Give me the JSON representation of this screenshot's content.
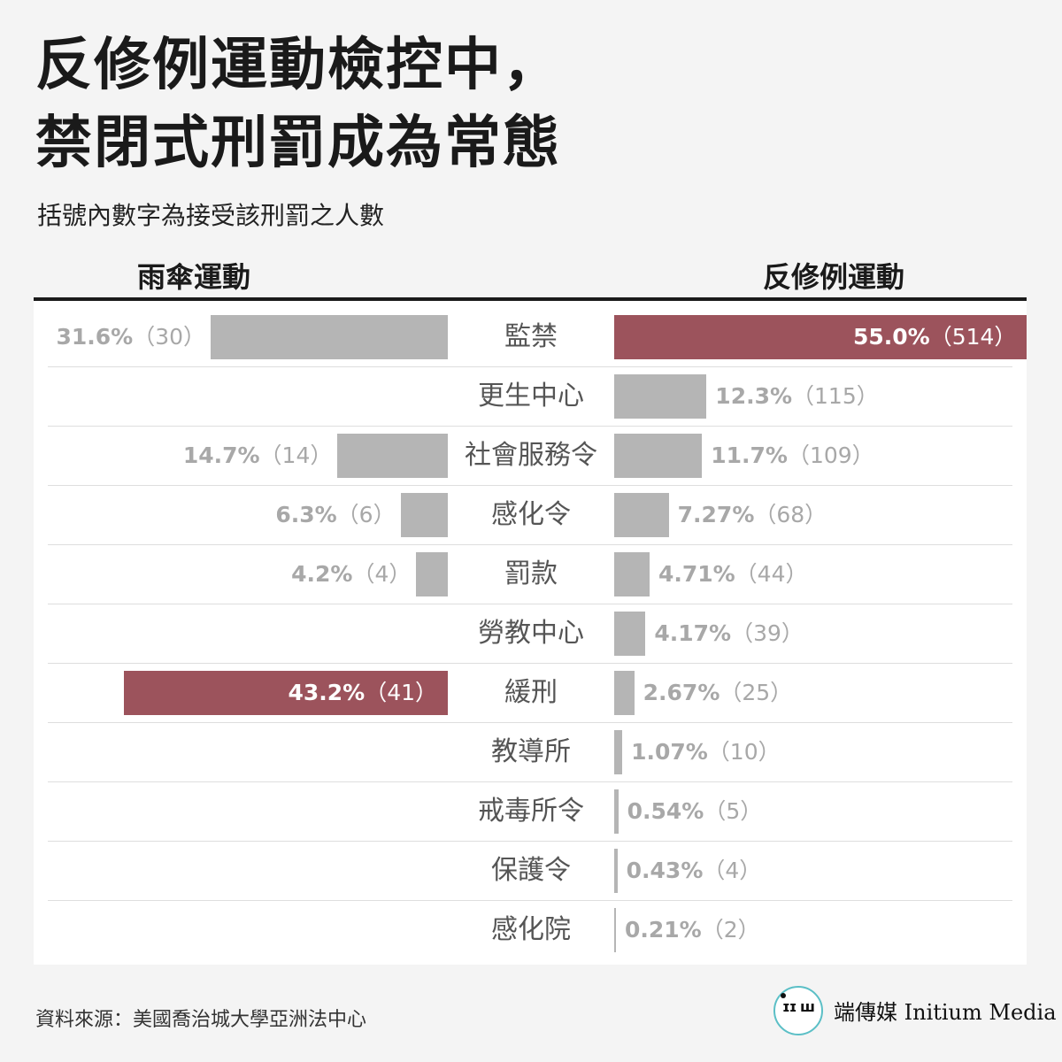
{
  "title_line1": "反修例運動檢控中，",
  "title_line2": "禁閉式刑罰成為常態",
  "subtitle": "括號內數字為接受該刑罰之人數",
  "footer": {
    "source": "資料來源：美國喬治城大學亞洲法中心",
    "brand": "端傳媒 Initium Media",
    "logo_text": "ɪɪ ш"
  },
  "colors": {
    "highlight": "#9c535c",
    "bar": "#b5b5b5",
    "label_on_gray": "#a8a8a8",
    "label_on_highlight": "#ffffff"
  },
  "chart_data": {
    "type": "bar",
    "orientation": "horizontal-diverging",
    "left_series": "雨傘運動",
    "right_series": "反修例運動",
    "categories": [
      "監禁",
      "更生中心",
      "社會服務令",
      "感化令",
      "罰款",
      "勞教中心",
      "緩刑",
      "教導所",
      "戒毒所令",
      "保護令",
      "感化院"
    ],
    "left": [
      {
        "pct": 31.6,
        "label": "31.6%",
        "count": "（30）"
      },
      null,
      {
        "pct": 14.7,
        "label": "14.7%",
        "count": "（14）"
      },
      {
        "pct": 6.3,
        "label": "6.3%",
        "count": "（6）"
      },
      {
        "pct": 4.2,
        "label": "4.2%",
        "count": "（4）"
      },
      null,
      {
        "pct": 43.2,
        "label": "43.2%",
        "count": "（41）",
        "highlight": true
      },
      null,
      null,
      null,
      null
    ],
    "right": [
      {
        "pct": 55.0,
        "label": "55.0%",
        "count": "（514）",
        "highlight": true
      },
      {
        "pct": 12.3,
        "label": "12.3%",
        "count": "（115）"
      },
      {
        "pct": 11.7,
        "label": "11.7%",
        "count": "（109）"
      },
      {
        "pct": 7.27,
        "label": "7.27%",
        "count": "（68）"
      },
      {
        "pct": 4.71,
        "label": "4.71%",
        "count": "（44）"
      },
      {
        "pct": 4.17,
        "label": "4.17%",
        "count": "（39）"
      },
      {
        "pct": 2.67,
        "label": "2.67%",
        "count": "（25）"
      },
      {
        "pct": 1.07,
        "label": "1.07%",
        "count": "（10）"
      },
      {
        "pct": 0.54,
        "label": "0.54%",
        "count": "（5）"
      },
      {
        "pct": 0.43,
        "label": "0.43%",
        "count": "（4）"
      },
      {
        "pct": 0.21,
        "label": "0.21%",
        "count": "（2）"
      }
    ]
  }
}
